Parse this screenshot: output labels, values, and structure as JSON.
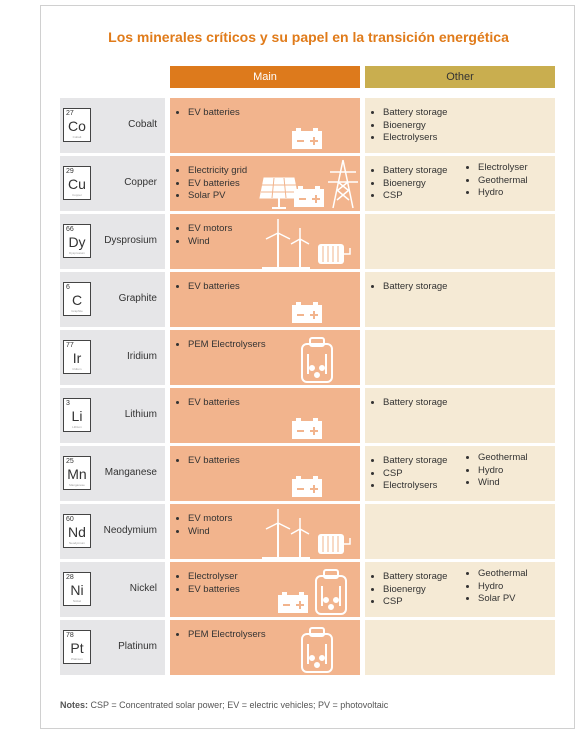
{
  "title": "Los minerales críticos y su papel en la transición energética",
  "headers": [
    "Main",
    "Other"
  ],
  "rows": [
    {
      "number": 27,
      "symbol": "Co",
      "name": "Cobalt",
      "main": [
        "EV batteries"
      ],
      "other": [
        [
          "Battery storage",
          "Bioenergy",
          "Electrolysers"
        ]
      ]
    },
    {
      "number": 29,
      "symbol": "Cu",
      "name": "Copper",
      "main": [
        "Electricity grid",
        "EV batteries",
        "Solar PV"
      ],
      "other": [
        [
          "Battery storage",
          "Bioenergy",
          "CSP"
        ],
        [
          "Electrolyser",
          "Geothermal",
          "Hydro"
        ]
      ]
    },
    {
      "number": 66,
      "symbol": "Dy",
      "name": "Dysprosium",
      "main": [
        "EV motors",
        "Wind"
      ],
      "other": []
    },
    {
      "number": 6,
      "symbol": "C",
      "name": "Graphite",
      "main": [
        "EV batteries"
      ],
      "other": [
        [
          "Battery storage"
        ]
      ]
    },
    {
      "number": 77,
      "symbol": "Ir",
      "name": "Iridium",
      "main": [
        "PEM Electrolysers"
      ],
      "other": []
    },
    {
      "number": 3,
      "symbol": "Li",
      "name": "Lithium",
      "main": [
        "EV batteries"
      ],
      "other": [
        [
          "Battery storage"
        ]
      ]
    },
    {
      "number": 25,
      "symbol": "Mn",
      "name": "Manganese",
      "main": [
        "EV batteries"
      ],
      "other": [
        [
          "Battery storage",
          "CSP",
          "Electrolysers"
        ],
        [
          "Geothermal",
          "Hydro",
          "Wind"
        ]
      ]
    },
    {
      "number": 60,
      "symbol": "Nd",
      "name": "Neodymium",
      "main": [
        "EV motors",
        "Wind"
      ],
      "other": []
    },
    {
      "number": 28,
      "symbol": "Ni",
      "name": "Nickel",
      "main": [
        "Electrolyser",
        "EV batteries"
      ],
      "other": [
        [
          "Battery storage",
          "Bioenergy",
          "CSP"
        ],
        [
          "Geothermal",
          "Hydro",
          "Solar PV"
        ]
      ]
    },
    {
      "number": 78,
      "symbol": "Pt",
      "name": "Platinum",
      "main": [
        "PEM Electrolysers"
      ],
      "other": []
    }
  ],
  "notes": {
    "label": "Notes:",
    "text": "CSP = Concentrated solar power; EV = electric vehicles; PV = photovoltaic"
  }
}
